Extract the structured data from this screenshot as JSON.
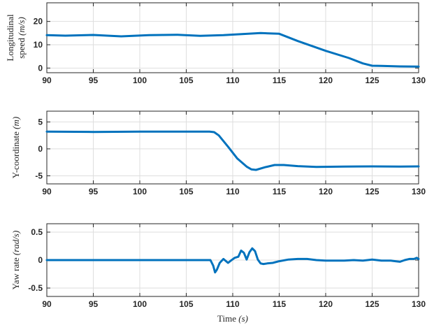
{
  "line_color": "#0072bd",
  "chart_data": [
    {
      "type": "line",
      "ylabel_lines": [
        "Longitudinal",
        "speed (m/s)"
      ],
      "xlabel": "",
      "xlim": [
        90,
        130
      ],
      "ylim": [
        -2,
        28
      ],
      "xticks": [
        90,
        95,
        100,
        105,
        110,
        115,
        120,
        125,
        130
      ],
      "yticks": [
        0,
        10,
        20
      ],
      "grid": true,
      "x": [
        90,
        92,
        95,
        98,
        101,
        104,
        106.5,
        109,
        111,
        113,
        115,
        117,
        120,
        122.5,
        124,
        125,
        126,
        128,
        130
      ],
      "y": [
        14.1,
        13.9,
        14.2,
        13.6,
        14.1,
        14.3,
        13.8,
        14.1,
        14.6,
        15.0,
        14.7,
        11.6,
        7.4,
        4.3,
        2.0,
        1.0,
        0.9,
        0.7,
        0.6
      ]
    },
    {
      "type": "line",
      "ylabel_lines": [
        "Y-coordinate (m)"
      ],
      "xlabel": "",
      "xlim": [
        90,
        130
      ],
      "ylim": [
        -6.5,
        7
      ],
      "xticks": [
        90,
        95,
        100,
        105,
        110,
        115,
        120,
        125,
        130
      ],
      "yticks": [
        -5,
        0,
        5
      ],
      "grid": true,
      "x": [
        90,
        95,
        100,
        105,
        107.5,
        108,
        108.5,
        109.5,
        110.5,
        111.5,
        112,
        112.5,
        113.5,
        114.5,
        115.5,
        117,
        119,
        122,
        125,
        128,
        130
      ],
      "y": [
        3.2,
        3.15,
        3.2,
        3.2,
        3.2,
        3.1,
        2.5,
        0.4,
        -1.8,
        -3.3,
        -3.8,
        -3.9,
        -3.4,
        -3.0,
        -3.0,
        -3.2,
        -3.35,
        -3.3,
        -3.25,
        -3.3,
        -3.25
      ],
      "tick_labels": [
        "90",
        "95",
        "100",
        "105",
        "110",
        "115",
        "120",
        "125",
        "130"
      ]
    },
    {
      "type": "line",
      "ylabel_lines": [
        "Yaw rate (rad/s)"
      ],
      "xlabel": "Time (s)",
      "xlim": [
        90,
        130
      ],
      "ylim": [
        -0.65,
        0.65
      ],
      "xticks": [
        90,
        95,
        100,
        105,
        110,
        115,
        120,
        125,
        130
      ],
      "yticks": [
        -0.5,
        0,
        0.5
      ],
      "ytick_labels": [
        "-0.5",
        "0",
        "0.5"
      ],
      "grid": true,
      "x": [
        90,
        95,
        100,
        105,
        107.6,
        107.9,
        108.1,
        108.3,
        108.6,
        109,
        109.5,
        109.8,
        110.2,
        110.6,
        110.9,
        111.2,
        111.5,
        111.8,
        112.1,
        112.4,
        112.7,
        113.0,
        113.3,
        113.7,
        114.3,
        115,
        116,
        117,
        118,
        119,
        120,
        121,
        122,
        123,
        124,
        125,
        126,
        127,
        127.5,
        128,
        128.5,
        129,
        129.5,
        129.8,
        130
      ],
      "y": [
        0.0,
        0.0,
        0.0,
        0.0,
        0.0,
        -0.1,
        -0.22,
        -0.17,
        -0.05,
        0.02,
        -0.05,
        -0.01,
        0.04,
        0.06,
        0.17,
        0.13,
        0.01,
        0.14,
        0.21,
        0.16,
        0.01,
        -0.06,
        -0.07,
        -0.06,
        -0.05,
        -0.02,
        0.01,
        0.02,
        0.02,
        0.0,
        -0.01,
        -0.01,
        -0.01,
        0.0,
        -0.01,
        0.01,
        -0.01,
        -0.01,
        -0.02,
        -0.03,
        0.0,
        0.02,
        0.02,
        0.04,
        0.02
      ]
    }
  ]
}
